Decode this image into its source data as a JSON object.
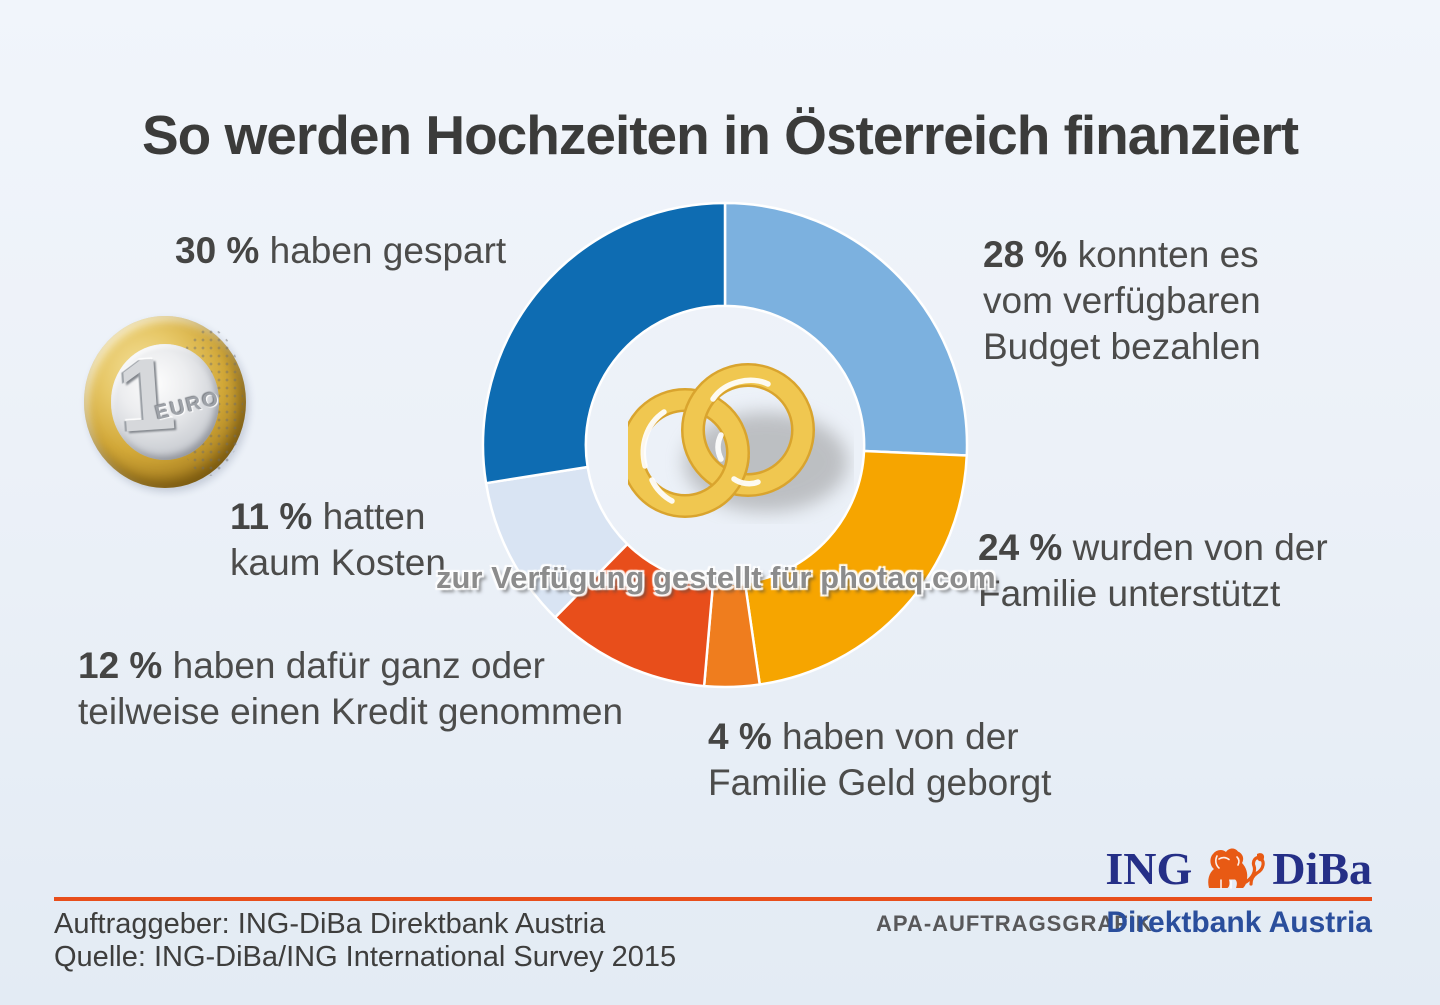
{
  "title": "So werden Hochzeiten in Österreich finanziert",
  "watermark": "zur Verfügung gestellt für photaq.com",
  "chart_data": {
    "type": "donut",
    "title": "So werden Hochzeiten in Österreich finanziert",
    "unit": "%",
    "start_angle_deg": 0,
    "clockwise": true,
    "inner_radius_ratio": 0.575,
    "separator_color": "#FFFFFF",
    "segments": [
      {
        "label": "konnten es vom verfügbaren Budget bezahlen",
        "value": 28,
        "color": "#7CB1DF"
      },
      {
        "label": "wurden von der Familie unterstützt",
        "value": 24,
        "color": "#F6A500"
      },
      {
        "label": "haben von der Familie Geld geborgt",
        "value": 4,
        "color": "#EF7D1E"
      },
      {
        "label": "haben dafür ganz oder teilweise einen Kredit genommen",
        "value": 12,
        "color": "#E84E1B"
      },
      {
        "label": "hatten kaum Kosten",
        "value": 11,
        "color": "#D9E4F3"
      },
      {
        "label": "haben gespart",
        "value": 30,
        "color": "#0E6CB2"
      }
    ]
  },
  "callouts": {
    "saved": {
      "pct": "30 %",
      "line1": "haben gespart"
    },
    "budget": {
      "pct": "28 %",
      "line1": "konnten es",
      "line2": "vom verfügbaren",
      "line3": "Budget bezahlen"
    },
    "family": {
      "pct": "24 %",
      "line1": "wurden von der",
      "line2": "Familie unterstützt"
    },
    "borrowed": {
      "pct": "4 %",
      "line1": "haben von der",
      "line2": "Familie Geld geborgt"
    },
    "credit": {
      "pct": "12 %",
      "line1": "haben dafür ganz oder",
      "line2": "teilweise einen Kredit genommen"
    },
    "lowcost": {
      "pct": "11 %",
      "line1": "hatten",
      "line2": "kaum Kosten"
    }
  },
  "coin": {
    "value": "1",
    "currency": "EURO"
  },
  "footer": {
    "client_line": "Auftraggeber: ING-DiBa Direktbank Austria",
    "source_line": "Quelle: ING-DiBa/ING International Survey 2015",
    "apa_label": "APA-AUFTRAGSGRAFIK",
    "brand_sub": "Direktbank Austria",
    "logo_ing": "ING",
    "logo_diba": "DiBa",
    "rule_color": "#E84E1B"
  },
  "colors": {
    "title_text": "#3B3B3A",
    "label_text": "#4C4C4B",
    "watermark_text": "#8C8C8C",
    "logo_navy": "#252F87",
    "brand_blue": "#2A4E9C",
    "lion_orange": "#E85A14",
    "ring_gold": "#F0C750"
  }
}
